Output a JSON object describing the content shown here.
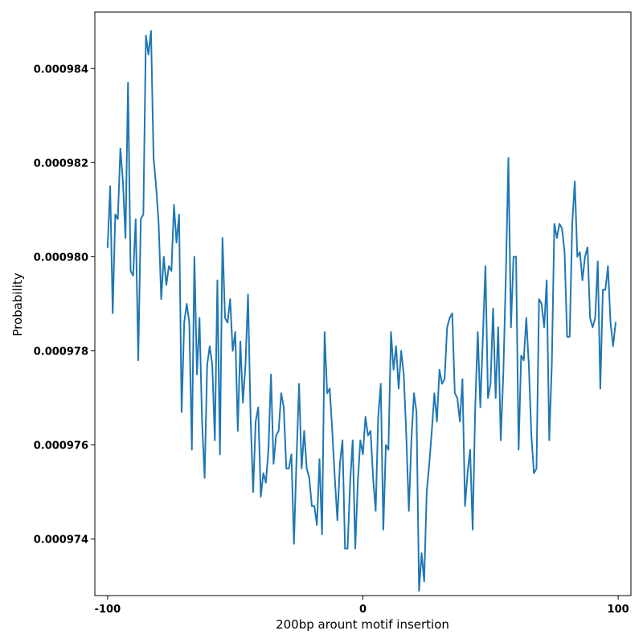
{
  "chart_data": {
    "type": "line",
    "title": "",
    "xlabel": "200bp arount motif insertion",
    "ylabel": "Probability",
    "xlim": [
      -105,
      105
    ],
    "ylim": [
      0.0009728,
      0.0009852
    ],
    "x_ticks": [
      -100,
      0,
      100
    ],
    "x_tick_labels": [
      "-100",
      "0",
      "100"
    ],
    "y_ticks": [
      0.000974,
      0.000976,
      0.000978,
      0.00098,
      0.000982,
      0.000984
    ],
    "y_tick_labels": [
      "0.000974",
      "0.000976",
      "0.000978",
      "0.000980",
      "0.000982",
      "0.000984"
    ],
    "grid": false,
    "legend": "none",
    "series": [
      {
        "color": "#1f77b4",
        "x_start": -100,
        "x_step": 1,
        "values": [
          0.0009802,
          0.0009815,
          0.0009788,
          0.0009809,
          0.0009808,
          0.0009823,
          0.0009816,
          0.0009804,
          0.0009837,
          0.0009797,
          0.0009796,
          0.0009808,
          0.0009778,
          0.0009808,
          0.0009809,
          0.0009847,
          0.0009843,
          0.0009848,
          0.0009821,
          0.0009815,
          0.0009807,
          0.0009791,
          0.00098,
          0.0009794,
          0.0009798,
          0.0009797,
          0.0009811,
          0.0009803,
          0.0009809,
          0.0009767,
          0.0009786,
          0.000979,
          0.0009786,
          0.0009759,
          0.00098,
          0.0009775,
          0.0009787,
          0.0009765,
          0.0009753,
          0.0009777,
          0.0009781,
          0.0009777,
          0.0009761,
          0.0009795,
          0.0009758,
          0.0009804,
          0.0009787,
          0.0009786,
          0.0009791,
          0.000978,
          0.0009784,
          0.0009763,
          0.0009782,
          0.0009769,
          0.0009777,
          0.0009792,
          0.0009766,
          0.000975,
          0.0009765,
          0.0009768,
          0.0009749,
          0.0009754,
          0.0009752,
          0.0009759,
          0.0009775,
          0.0009756,
          0.0009762,
          0.0009763,
          0.0009771,
          0.0009768,
          0.0009755,
          0.0009755,
          0.0009758,
          0.0009739,
          0.0009757,
          0.0009773,
          0.0009755,
          0.0009763,
          0.0009755,
          0.0009753,
          0.0009747,
          0.0009747,
          0.0009743,
          0.0009757,
          0.0009741,
          0.0009784,
          0.0009771,
          0.0009772,
          0.0009763,
          0.0009753,
          0.0009744,
          0.0009756,
          0.0009761,
          0.0009738,
          0.0009738,
          0.0009752,
          0.0009761,
          0.0009738,
          0.0009752,
          0.0009761,
          0.0009758,
          0.0009766,
          0.0009762,
          0.0009763,
          0.0009753,
          0.0009746,
          0.0009766,
          0.0009773,
          0.0009742,
          0.000976,
          0.0009759,
          0.0009784,
          0.0009776,
          0.0009781,
          0.0009772,
          0.000978,
          0.0009775,
          0.0009762,
          0.0009746,
          0.0009761,
          0.0009771,
          0.0009767,
          0.0009729,
          0.0009737,
          0.0009731,
          0.000975,
          0.0009756,
          0.0009763,
          0.0009771,
          0.0009765,
          0.0009776,
          0.0009773,
          0.0009774,
          0.0009785,
          0.0009787,
          0.0009788,
          0.0009771,
          0.000977,
          0.0009765,
          0.0009774,
          0.0009747,
          0.0009754,
          0.0009759,
          0.0009742,
          0.0009768,
          0.0009784,
          0.0009768,
          0.0009783,
          0.0009798,
          0.000977,
          0.0009773,
          0.0009789,
          0.000977,
          0.0009785,
          0.0009761,
          0.0009775,
          0.0009796,
          0.0009821,
          0.0009785,
          0.00098,
          0.00098,
          0.0009759,
          0.0009779,
          0.0009778,
          0.0009787,
          0.0009777,
          0.0009762,
          0.0009754,
          0.0009755,
          0.0009791,
          0.000979,
          0.0009785,
          0.0009795,
          0.0009761,
          0.0009777,
          0.0009807,
          0.0009804,
          0.0009807,
          0.0009806,
          0.0009801,
          0.0009783,
          0.0009783,
          0.0009807,
          0.0009816,
          0.00098,
          0.0009801,
          0.0009795,
          0.00098,
          0.0009802,
          0.0009787,
          0.0009785,
          0.0009787,
          0.0009799,
          0.0009772,
          0.0009793,
          0.0009793,
          0.0009798,
          0.0009786,
          0.0009781,
          0.0009786
        ]
      }
    ]
  }
}
